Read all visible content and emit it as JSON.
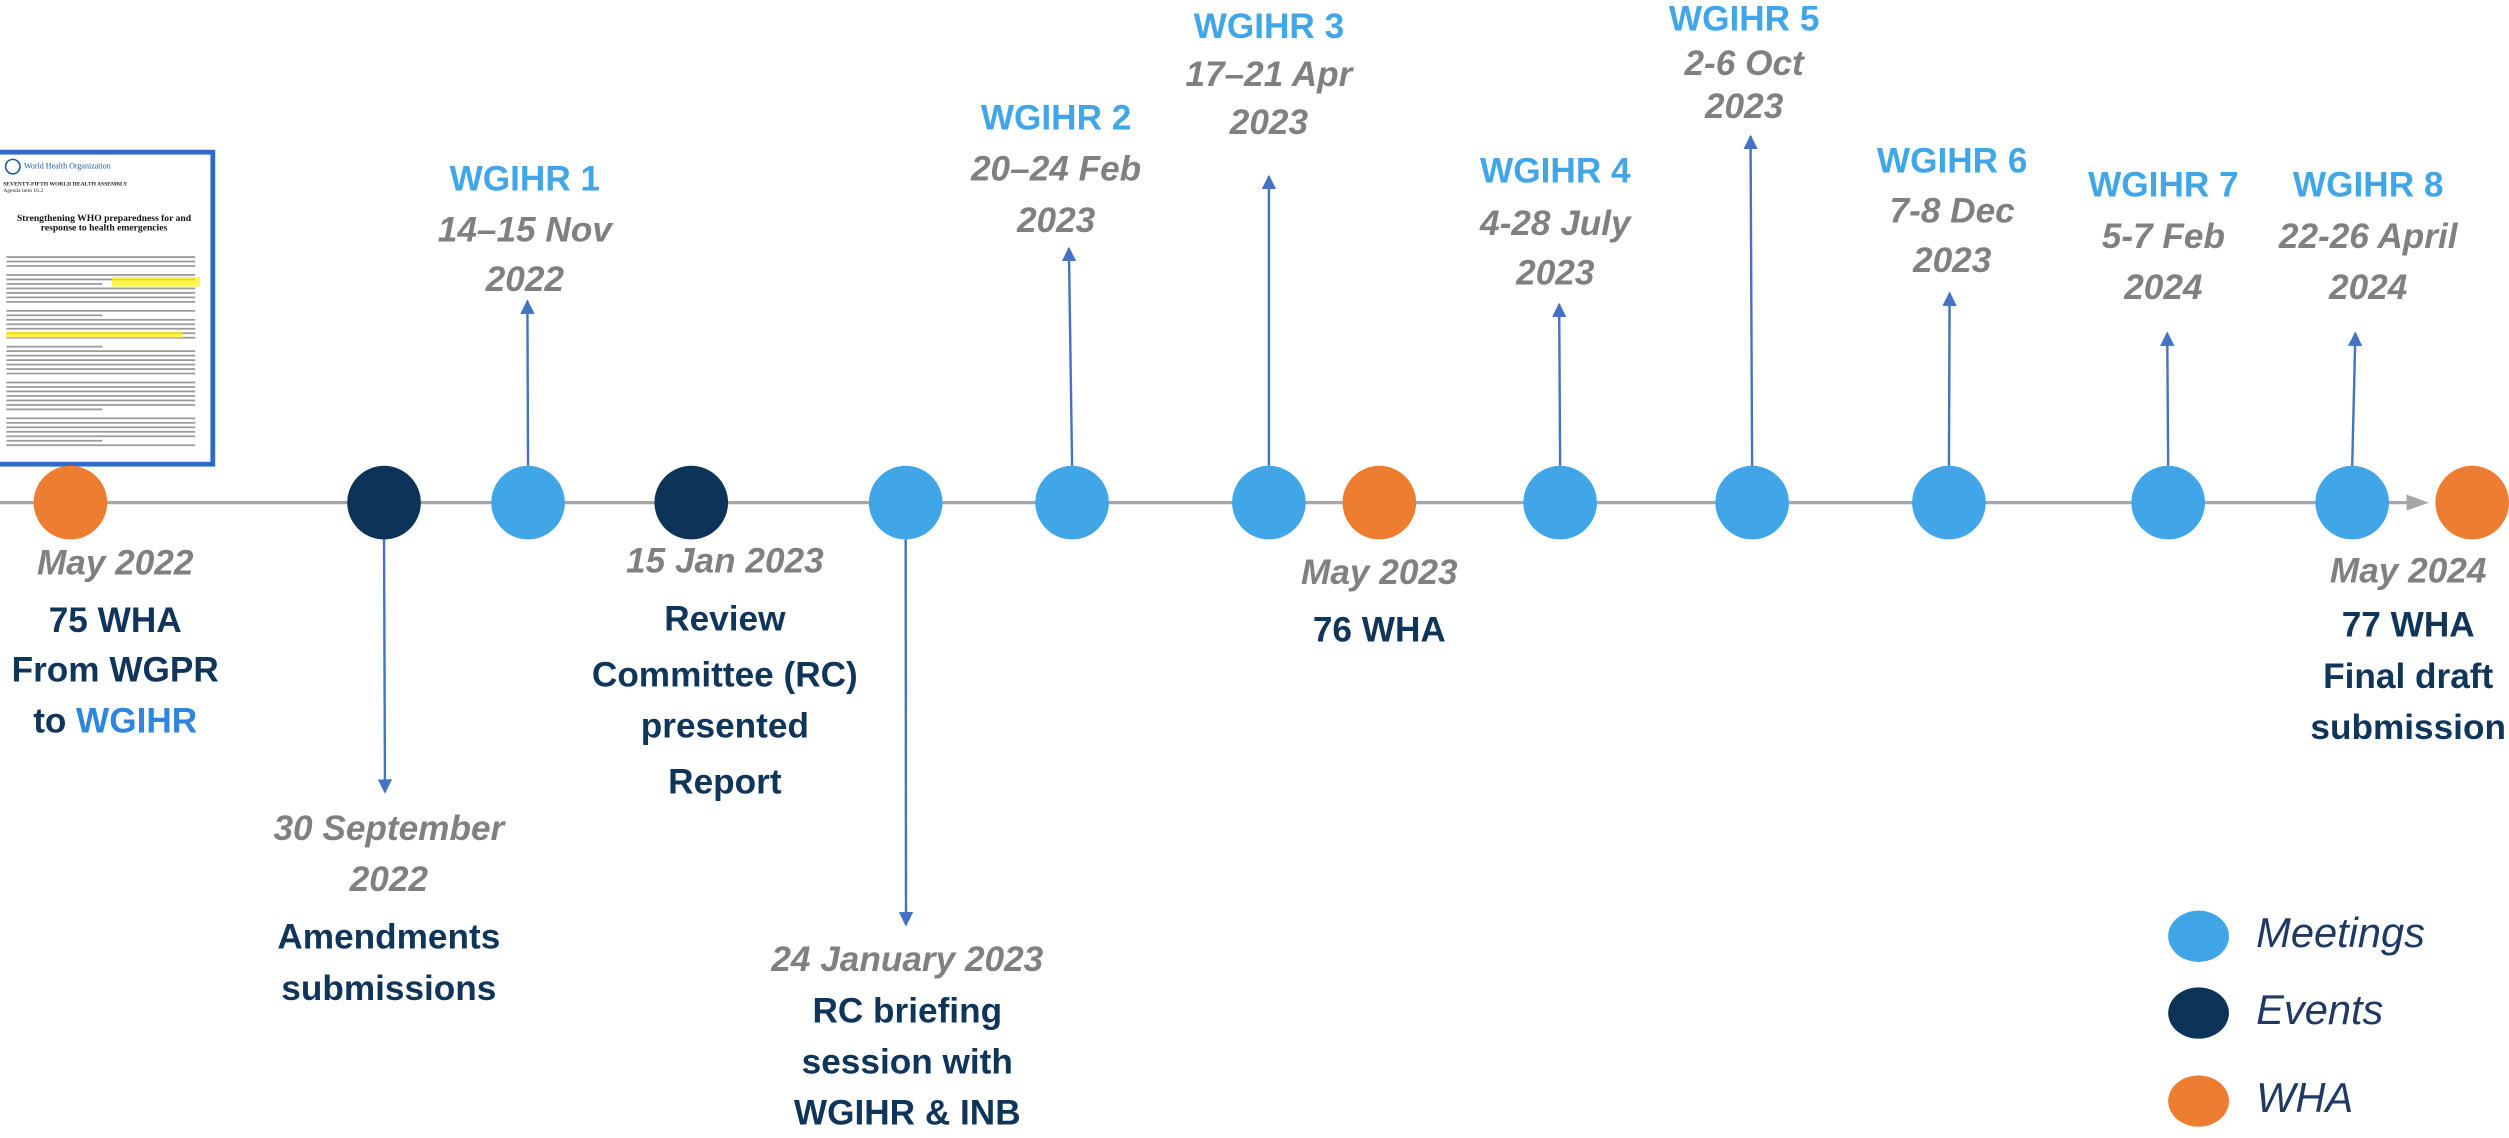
{
  "document": {
    "org": "World Health Organization",
    "assembly": "SEVENTY-FIFTH WORLD HEALTH ASSEMBLY",
    "agenda": "Agenda item 16.2",
    "title": "Strengthening WHO preparedness for and response to health emergencies"
  },
  "timeline": [
    {
      "kind": "wha",
      "date": [
        "May 2022"
      ],
      "label": [
        "75 WHA",
        "From WGPR",
        [
          "to",
          "WGIHR"
        ]
      ]
    },
    {
      "kind": "event",
      "date": [
        "30 September",
        "2022"
      ],
      "label": [
        "Amendments",
        "submissions"
      ]
    },
    {
      "kind": "meeting",
      "title": "WGIHR 1",
      "date": [
        "14–15 Nov",
        "2022"
      ]
    },
    {
      "kind": "event",
      "date": [
        "15 Jan 2023"
      ],
      "label": [
        "Review",
        "Committee (RC)",
        "presented",
        "Report"
      ]
    },
    {
      "kind": "meeting",
      "date": [
        "24 January 2023"
      ],
      "label": [
        "RC briefing",
        "session with",
        "WGIHR & INB"
      ]
    },
    {
      "kind": "meeting",
      "title": "WGIHR 2",
      "date": [
        "20–24 Feb",
        "2023"
      ]
    },
    {
      "kind": "meeting",
      "title": "WGIHR 3",
      "date": [
        "17–21 Apr",
        "2023"
      ]
    },
    {
      "kind": "wha",
      "date": [
        "May 2023"
      ],
      "label": [
        "76 WHA"
      ]
    },
    {
      "kind": "meeting",
      "title": "WGIHR 4",
      "date": [
        "4-28 July",
        "2023"
      ]
    },
    {
      "kind": "meeting",
      "title": "WGIHR 5",
      "date": [
        "2-6 Oct",
        "2023"
      ]
    },
    {
      "kind": "meeting",
      "title": "WGIHR 6",
      "date": [
        "7-8 Dec",
        "2023"
      ]
    },
    {
      "kind": "meeting",
      "title": "WGIHR 7",
      "date": [
        "5-7 Feb",
        "2024"
      ]
    },
    {
      "kind": "meeting",
      "title": "WGIHR 8",
      "date": [
        "22-26 April",
        "2024"
      ]
    },
    {
      "kind": "wha",
      "date": [
        "May 2024"
      ],
      "label": [
        "77 WHA",
        "Final draft",
        "submission"
      ]
    }
  ],
  "legend": [
    {
      "kind": "meeting",
      "label": "Meetings"
    },
    {
      "kind": "event",
      "label": "Events"
    },
    {
      "kind": "wha",
      "label": "WHA"
    }
  ]
}
